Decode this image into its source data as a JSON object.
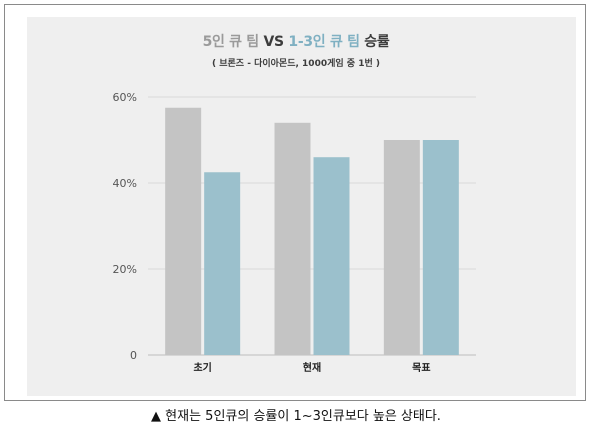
{
  "title": {
    "part1": "5인 큐 팀",
    "vs": "VS",
    "part2": "1-3인 큐 팀",
    "part3": "승률"
  },
  "subtitle": "( 브론즈 - 다이아몬드, 1000게임 중 1번 )",
  "caption": "▲ 현재는 5인큐의 승률이 1~3인큐보다 높은 상태다.",
  "colors": {
    "series1": "#c4c4c4",
    "series2": "#9bc0cc",
    "panel": "#efefef",
    "grid": "#d8d8d8",
    "axis": "#555555"
  },
  "chart_data": {
    "type": "bar",
    "categories": [
      "초기",
      "현재",
      "목표"
    ],
    "series": [
      {
        "values": [
          57.5,
          54,
          50
        ]
      },
      {
        "values": [
          42.5,
          46,
          50
        ]
      }
    ],
    "ylim": [
      0,
      60
    ],
    "yticks": [
      0,
      20,
      40,
      60
    ],
    "ytick_labels": [
      "0",
      "20%",
      "40%",
      "60%"
    ],
    "grid": true
  }
}
